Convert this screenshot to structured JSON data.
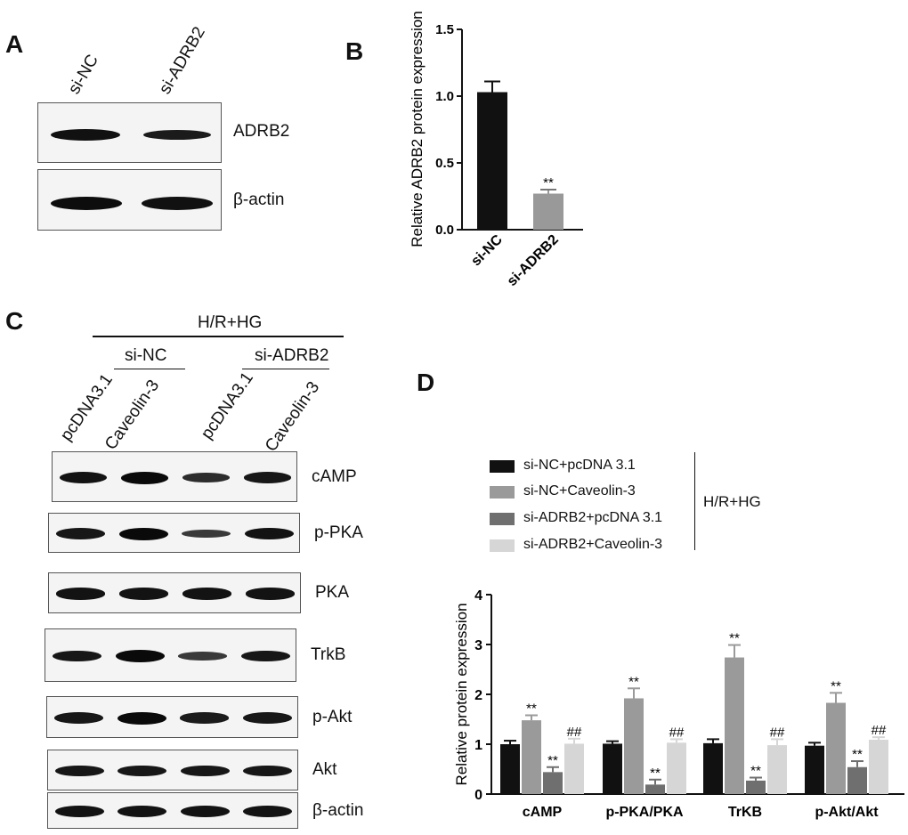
{
  "panels": {
    "a": "A",
    "b": "B",
    "c": "C",
    "d": "D"
  },
  "panel_a": {
    "lanes": [
      "si-NC",
      "si-ADRB2"
    ],
    "blots": [
      {
        "protein": "ADRB2",
        "bands": [
          1.0,
          0.8
        ]
      },
      {
        "protein": "β-actin",
        "bands": [
          1.0,
          0.95
        ]
      }
    ]
  },
  "panel_c": {
    "condition": "H/R+HG",
    "groups": [
      "si-NC",
      "si-ADRB2"
    ],
    "lanes": [
      "pcDNA3.1",
      "Caveolin-3",
      "pcDNA3.1",
      "Caveolin-3"
    ],
    "blots": [
      {
        "protein": "cAMP",
        "bands": [
          0.9,
          1.0,
          0.6,
          0.85
        ]
      },
      {
        "protein": "p-PKA",
        "bands": [
          0.85,
          1.0,
          0.45,
          0.9
        ]
      },
      {
        "protein": "PKA",
        "bands": [
          0.9,
          0.9,
          0.9,
          0.9
        ]
      },
      {
        "protein": "TrkB",
        "bands": [
          0.85,
          1.0,
          0.45,
          0.85
        ]
      },
      {
        "protein": "p-Akt",
        "bands": [
          0.85,
          1.0,
          0.8,
          0.85
        ]
      },
      {
        "protein": "Akt",
        "bands": [
          0.85,
          0.85,
          0.85,
          0.85
        ]
      },
      {
        "protein": "β-actin",
        "bands": [
          0.9,
          0.9,
          0.9,
          0.9
        ]
      }
    ]
  },
  "chart_data": [
    {
      "type": "bar",
      "panel": "B",
      "categories": [
        "si-NC",
        "si-ADRB2"
      ],
      "values": [
        1.03,
        0.27
      ],
      "errors": [
        0.08,
        0.03
      ],
      "annotations": [
        "",
        "**"
      ],
      "colors": [
        "#111111",
        "#999999"
      ],
      "ylabel": "Relative ADRB2 protein expression",
      "ylim": [
        0,
        1.5
      ],
      "yticks": [
        "0.0",
        "0.5",
        "1.0",
        "1.5"
      ]
    },
    {
      "type": "bar",
      "panel": "D",
      "categories": [
        "cAMP",
        "p-PKA/PKA",
        "TrKB",
        "p-Akt/Akt"
      ],
      "series": [
        {
          "name": "si-NC+pcDNA 3.1",
          "color": "#111111",
          "values": [
            1.0,
            1.01,
            1.02,
            0.97
          ],
          "errors": [
            0.07,
            0.05,
            0.08,
            0.06
          ],
          "marks": [
            "",
            "",
            "",
            ""
          ]
        },
        {
          "name": "si-NC+Caveolin-3",
          "color": "#9a9a9a",
          "values": [
            1.48,
            1.92,
            2.74,
            1.83
          ],
          "errors": [
            0.1,
            0.2,
            0.25,
            0.2
          ],
          "marks": [
            "**",
            "**",
            "**",
            "**"
          ]
        },
        {
          "name": "si-ADRB2+pcDNA 3.1",
          "color": "#6f6f6f",
          "values": [
            0.44,
            0.19,
            0.27,
            0.54
          ],
          "errors": [
            0.1,
            0.1,
            0.06,
            0.12
          ],
          "marks": [
            "**",
            "**",
            "**",
            "**"
          ]
        },
        {
          "name": "si-ADRB2+Caveolin-3",
          "color": "#d6d6d6",
          "values": [
            1.01,
            1.03,
            0.98,
            1.09
          ],
          "errors": [
            0.1,
            0.07,
            0.12,
            0.05
          ],
          "marks": [
            "##",
            "##",
            "##",
            "##"
          ]
        }
      ],
      "legend_group": "H/R+HG",
      "ylabel": "Relative protein expression",
      "ylim": [
        0,
        4
      ],
      "yticks": [
        "0",
        "1",
        "2",
        "3",
        "4"
      ]
    }
  ]
}
